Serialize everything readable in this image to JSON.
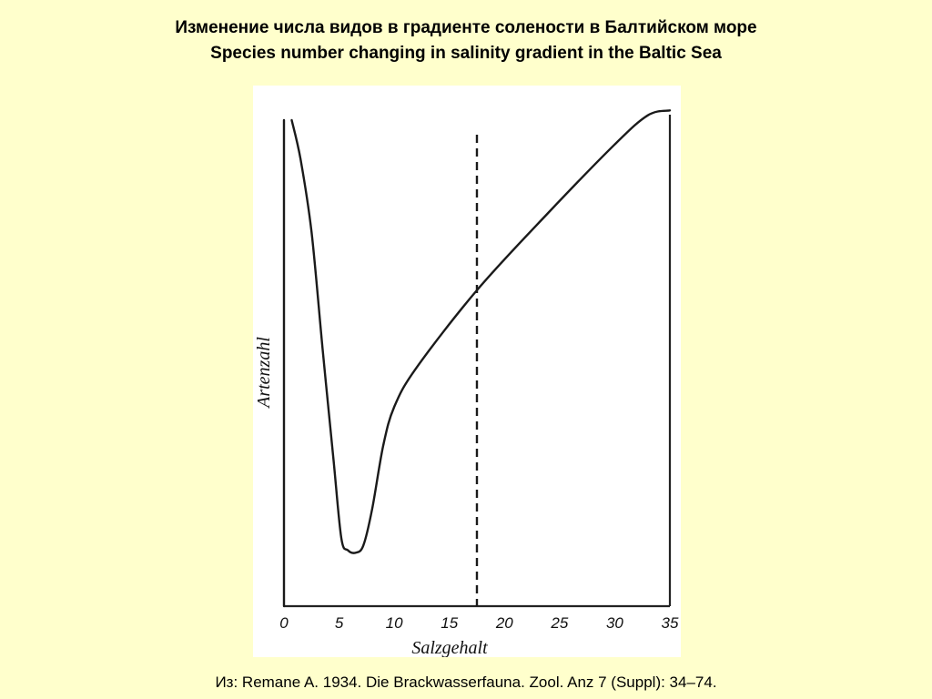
{
  "header": {
    "title_ru": "Изменение числа видов в градиенте солености в Балтийском море",
    "title_en": "Species number changing in salinity gradient in the Baltic Sea"
  },
  "chart_data": {
    "type": "line",
    "xlabel": "Salzgehalt",
    "ylabel": "Artenzahl",
    "xlim": [
      0,
      35
    ],
    "ylim": [
      0,
      100
    ],
    "x_ticks": [
      0,
      5,
      10,
      15,
      20,
      25,
      30,
      35
    ],
    "y_ticks_shown": false,
    "grid": false,
    "series": [
      {
        "values": [
          {
            "x": 0.7,
            "y": 100
          },
          {
            "x": 1.5,
            "y": 92
          },
          {
            "x": 2.5,
            "y": 77
          },
          {
            "x": 3.5,
            "y": 53
          },
          {
            "x": 4.5,
            "y": 30
          },
          {
            "x": 5.2,
            "y": 14
          },
          {
            "x": 5.8,
            "y": 11.5
          },
          {
            "x": 6.5,
            "y": 11
          },
          {
            "x": 7.2,
            "y": 12.5
          },
          {
            "x": 8.0,
            "y": 20
          },
          {
            "x": 9.0,
            "y": 33
          },
          {
            "x": 10.0,
            "y": 41
          },
          {
            "x": 12.0,
            "y": 49
          },
          {
            "x": 17.5,
            "y": 65
          },
          {
            "x": 24.0,
            "y": 81
          },
          {
            "x": 30.0,
            "y": 95
          },
          {
            "x": 33.0,
            "y": 101
          },
          {
            "x": 35.0,
            "y": 102
          }
        ]
      },
      {
        "values": [
          {
            "x": 0,
            "y": 100
          },
          {
            "x": 0,
            "y": 0
          }
        ]
      }
    ],
    "reference_lines": [
      {
        "orientation": "vertical",
        "x": 17.5,
        "style": "dashed"
      }
    ]
  },
  "footer": {
    "source": "Из: Remane A. 1934. Die Brackwasserfauna. Zool. Anz 7 (Suppl): 34–74."
  }
}
